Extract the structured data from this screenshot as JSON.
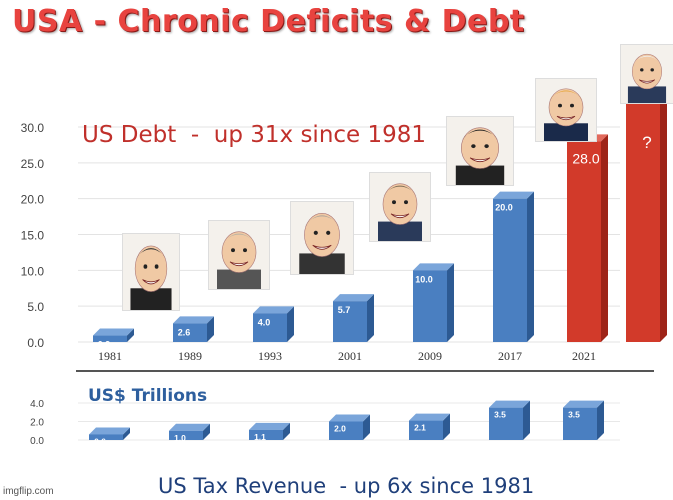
{
  "title": "USA - Chronic Deficits & Debt",
  "debt_headline": "US Debt  -  up 31x since 1981",
  "units_label": "US$ Trillions",
  "revenue_headline": "US Tax Revenue  - up 6x since 1981",
  "watermark": "imgflip.com",
  "colors": {
    "blue_bar": "#4a7fc1",
    "red_bar": "#d23a2a",
    "title": "#e8433f"
  },
  "portraits": [
    "caricature-1981",
    "caricature-1989",
    "caricature-1993",
    "caricature-2001",
    "caricature-2009",
    "caricature-2017",
    "caricature-2021",
    "caricature-next"
  ],
  "chart_data": [
    {
      "type": "bar",
      "series": [
        {
          "values": [
            0.9,
            2.6,
            4.0,
            5.7,
            10.0,
            20.0,
            28.0
          ]
        }
      ],
      "categories": [
        "1981",
        "1989",
        "1993",
        "2001",
        "2009",
        "2017",
        "2021"
      ],
      "data_labels": [
        "0.9",
        "2.6",
        "4.0",
        "5.7",
        "10.0",
        "20.0",
        "28.0"
      ],
      "extra_bar": {
        "label": "?",
        "value": 31.5
      },
      "yticks": [
        "0.0",
        "5.0",
        "10.0",
        "15.0",
        "20.0",
        "25.0",
        "30.0"
      ],
      "ylim": [
        0,
        30
      ],
      "grid": true,
      "title": "US Debt  -  up 31x since 1981"
    },
    {
      "type": "bar",
      "series": [
        {
          "values": [
            0.6,
            1.0,
            1.1,
            2.0,
            2.1,
            3.5,
            3.5
          ]
        }
      ],
      "categories": [
        "1981",
        "1989",
        "1993",
        "2001",
        "2009",
        "2017",
        "2021"
      ],
      "data_labels": [
        "0.6",
        "1.0",
        "1.1",
        "2.0",
        "2.1",
        "3.5",
        "3.5"
      ],
      "yticks": [
        "0.0",
        "2.0",
        "4.0"
      ],
      "ylim": [
        0,
        4
      ],
      "grid": true,
      "title": "US Tax Revenue  - up 6x since 1981"
    }
  ]
}
